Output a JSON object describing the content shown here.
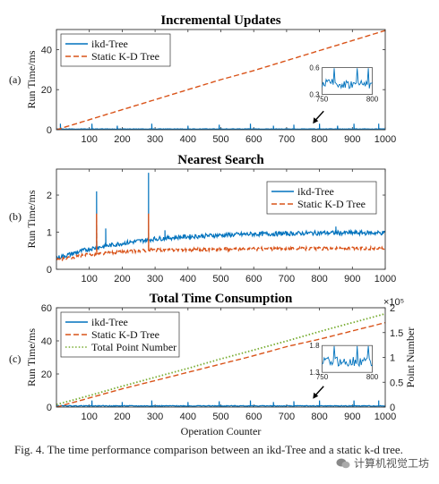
{
  "colors": {
    "ikd": "#0072BD",
    "static": "#D95319",
    "points": "#77AC30"
  },
  "chart_data": [
    {
      "id": "a",
      "type": "line",
      "panel_label": "(a)",
      "title": "Incremental Updates",
      "ylabel": "Run Time/ms",
      "xlim": [
        0,
        1000
      ],
      "ylim": [
        0,
        50
      ],
      "xticks": [
        100,
        200,
        300,
        400,
        500,
        600,
        700,
        800,
        900,
        1000
      ],
      "yticks": [
        0,
        20,
        40
      ],
      "legend_position": "top-left",
      "series": [
        {
          "name": "ikd-Tree",
          "style": "solid",
          "color_key": "ikd",
          "baseline": 0.35,
          "noise": 0.12,
          "spikes": [
            [
              12,
              3
            ],
            [
              108,
              3
            ],
            [
              185,
              2
            ],
            [
              290,
              3
            ],
            [
              400,
              2
            ],
            [
              495,
              2.5
            ],
            [
              590,
              3
            ],
            [
              660,
              2
            ],
            [
              722,
              2.5
            ],
            [
              800,
              3
            ],
            [
              855,
              2
            ],
            [
              905,
              3
            ],
            [
              980,
              3
            ]
          ]
        },
        {
          "name": "Static K-D Tree",
          "style": "dashed",
          "color_key": "static",
          "x": [
            0,
            100,
            200,
            300,
            400,
            500,
            600,
            700,
            800,
            900,
            1000
          ],
          "y": [
            0,
            5,
            10,
            15,
            20,
            25,
            29.5,
            34.5,
            39.5,
            44.5,
            49.5
          ]
        }
      ],
      "annotations": [
        {
          "type": "arrow",
          "x": 780,
          "y": 3
        },
        {
          "type": "inset",
          "xlim": [
            750,
            800
          ],
          "ylim": [
            0.3,
            0.6
          ],
          "xticks": [
            750,
            800
          ],
          "yticks": [
            0.3,
            0.6
          ]
        }
      ]
    },
    {
      "id": "b",
      "type": "line",
      "panel_label": "(b)",
      "title": "Nearest Search",
      "ylabel": "Run Time/ms",
      "xlim": [
        0,
        1000
      ],
      "ylim": [
        0,
        2.7
      ],
      "xticks": [
        100,
        200,
        300,
        400,
        500,
        600,
        700,
        800,
        900,
        1000
      ],
      "yticks": [
        0,
        1,
        2
      ],
      "legend_position": "top-right",
      "series": [
        {
          "name": "ikd-Tree",
          "style": "solid",
          "color_key": "ikd",
          "x": [
            0,
            100,
            200,
            300,
            400,
            500,
            600,
            700,
            800,
            900,
            1000
          ],
          "y": [
            0.3,
            0.55,
            0.7,
            0.82,
            0.88,
            0.92,
            0.95,
            0.96,
            0.98,
            0.98,
            0.98
          ],
          "noise": 0.06,
          "spikes": [
            [
              122,
              2.1
            ],
            [
              280,
              2.6
            ],
            [
              150,
              1.1
            ],
            [
              330,
              1.05
            ],
            [
              850,
              1.15
            ]
          ]
        },
        {
          "name": "Static K-D Tree",
          "style": "dashed",
          "color_key": "static",
          "x": [
            0,
            100,
            200,
            300,
            400,
            500,
            600,
            700,
            800,
            900,
            1000
          ],
          "y": [
            0.25,
            0.4,
            0.47,
            0.52,
            0.53,
            0.54,
            0.55,
            0.55,
            0.56,
            0.56,
            0.56
          ],
          "noise": 0.04,
          "spikes": [
            [
              122,
              1.5
            ],
            [
              280,
              1.5
            ]
          ]
        }
      ]
    },
    {
      "id": "c",
      "type": "line",
      "panel_label": "(c)",
      "title": "Total Time Consumption",
      "ylabel": "Run Time/ms",
      "ylabel_right": "Point Number",
      "xlabel": "Operation Counter",
      "xlim": [
        0,
        1000
      ],
      "ylim": [
        0,
        60
      ],
      "ylim_right": [
        0,
        2
      ],
      "right_exponent": "×10⁵",
      "xticks": [
        100,
        200,
        300,
        400,
        500,
        600,
        700,
        800,
        900,
        1000
      ],
      "yticks": [
        0,
        20,
        40,
        60
      ],
      "yticks_right": [
        0,
        0.5,
        1,
        1.5,
        2
      ],
      "legend_position": "top-left",
      "series": [
        {
          "name": "ikd-Tree",
          "style": "solid",
          "color_key": "ikd",
          "baseline": 0.7,
          "noise": 0.25,
          "spikes": [
            [
              108,
              4
            ],
            [
              200,
              3
            ],
            [
              290,
              4
            ],
            [
              400,
              3
            ],
            [
              495,
              3.5
            ],
            [
              590,
              4
            ],
            [
              660,
              3
            ],
            [
              722,
              3.5
            ],
            [
              800,
              4
            ],
            [
              905,
              4
            ],
            [
              980,
              4
            ]
          ]
        },
        {
          "name": "Static K-D Tree",
          "style": "dashed",
          "color_key": "static",
          "x": [
            0,
            100,
            200,
            300,
            400,
            500,
            600,
            700,
            800,
            900,
            1000
          ],
          "y": [
            0,
            5.5,
            11,
            16,
            21,
            26,
            31,
            36.5,
            41,
            46,
            51
          ]
        },
        {
          "name": "Total Point Number",
          "style": "dotted",
          "color_key": "points",
          "axis": "right",
          "x": [
            0,
            100,
            200,
            300,
            400,
            500,
            600,
            700,
            800,
            900,
            1000
          ],
          "y": [
            0.05,
            0.23,
            0.42,
            0.6,
            0.78,
            0.97,
            1.15,
            1.33,
            1.52,
            1.7,
            1.88
          ]
        }
      ],
      "annotations": [
        {
          "type": "arrow",
          "x": 780,
          "y": 5
        },
        {
          "type": "inset",
          "xlim": [
            750,
            800
          ],
          "ylim": [
            1.3,
            1.8
          ],
          "xticks": [
            750,
            800
          ],
          "yticks": [
            1.3,
            1.8
          ]
        }
      ]
    }
  ],
  "caption": "Fig. 4.   The time performance comparison between an ikd-Tree and a static k-d tree.",
  "watermark": "计算机视觉工坊"
}
